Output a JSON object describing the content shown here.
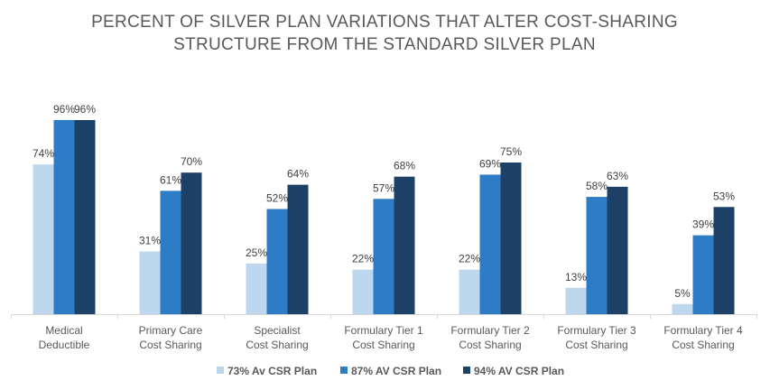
{
  "chart_data": {
    "type": "bar",
    "title_lines": [
      "PERCENT OF SILVER PLAN VARIATIONS THAT ALTER COST-SHARING",
      "STRUCTURE FROM THE STANDARD SILVER PLAN"
    ],
    "categories": [
      [
        "Medical",
        "Deductible"
      ],
      [
        "Primary Care",
        "Cost Sharing"
      ],
      [
        "Specialist",
        "Cost Sharing"
      ],
      [
        "Formulary Tier 1",
        "Cost Sharing"
      ],
      [
        "Formulary Tier 2",
        "Cost Sharing"
      ],
      [
        "Formulary Tier 3",
        "Cost Sharing"
      ],
      [
        "Formulary Tier 4",
        "Cost Sharing"
      ]
    ],
    "series": [
      {
        "name": "73% Av CSR Plan",
        "color": "#BDD7EE",
        "values": [
          74,
          31,
          25,
          22,
          22,
          13,
          5
        ]
      },
      {
        "name": "87% AV CSR Plan",
        "color": "#2E7BC6",
        "values": [
          96,
          61,
          52,
          57,
          69,
          58,
          39
        ]
      },
      {
        "name": "94% AV CSR Plan",
        "color": "#1D4066",
        "values": [
          96,
          70,
          64,
          68,
          75,
          63,
          53
        ]
      }
    ],
    "value_suffix": "%",
    "ylim": [
      0,
      100
    ],
    "grid": false,
    "legend": "bottom"
  }
}
